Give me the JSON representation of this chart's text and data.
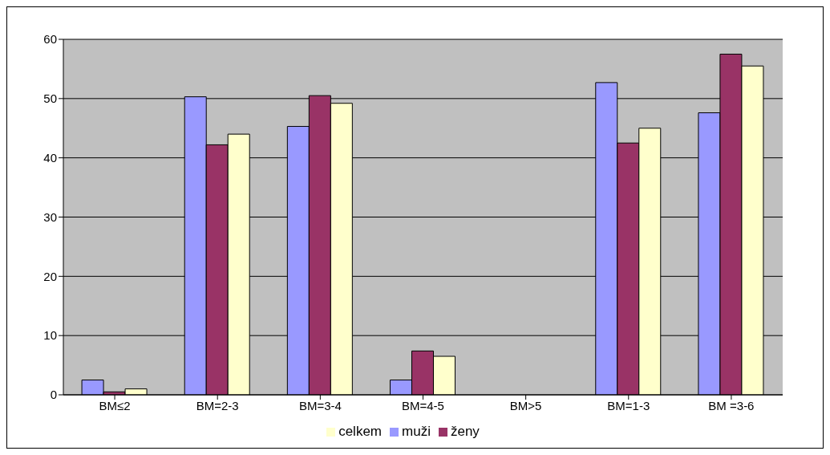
{
  "chart_data": {
    "type": "bar",
    "categories": [
      "BM≤2",
      "BM=2-3",
      "BM=3-4",
      "BM=4-5",
      "BM>5",
      "BM=1-3",
      "BM =3-6"
    ],
    "series": [
      {
        "name": "muži",
        "color": "#9999ff",
        "values": [
          2.5,
          50.3,
          45.3,
          2.5,
          0,
          52.7,
          47.6
        ]
      },
      {
        "name": "ženy",
        "color": "#993366",
        "values": [
          0.5,
          42.2,
          50.5,
          7.4,
          0,
          42.5,
          57.5
        ]
      },
      {
        "name": "celkem",
        "color": "#ffffcc",
        "values": [
          1,
          44,
          49.2,
          6.5,
          0,
          45,
          55.5
        ]
      }
    ],
    "ylim": [
      0,
      60
    ],
    "yticks": [
      0,
      10,
      20,
      30,
      40,
      50,
      60
    ],
    "grid": "y",
    "legend": "bottom"
  }
}
